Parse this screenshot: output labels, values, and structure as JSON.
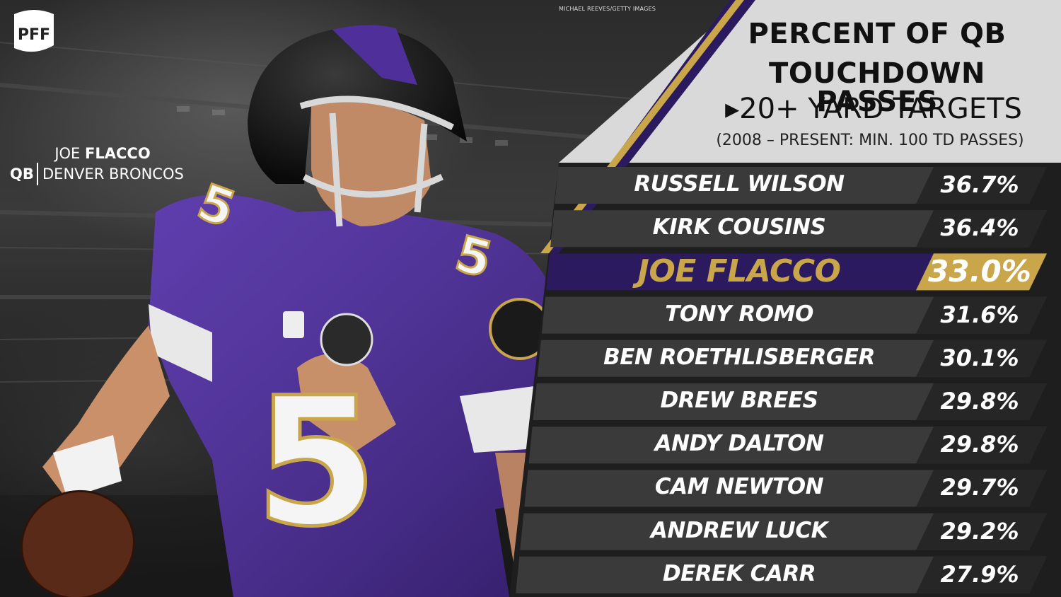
{
  "title": {
    "line1": "PERCENT OF QB",
    "line2": "TOUCHDOWN PASSES",
    "line3": "▸20+ YARD TARGETS",
    "note": "(2008 – PRESENT: MIN. 100 TD PASSES)"
  },
  "photo_credit": "MICHAEL REEVES/GETTY IMAGES",
  "brand": {
    "logo_text": "PFF"
  },
  "player_caption": {
    "first_name": "JOE",
    "last_name": "FLACCO",
    "position": "QB",
    "team": "DENVER BRONCOS",
    "jersey_number": "5"
  },
  "colors": {
    "purple": "#2b1a5e",
    "gold": "#c9a64a",
    "row_dark": "#3a3a3a",
    "header_bg": "#d9d9d9"
  },
  "chart_data": {
    "type": "table",
    "highlight": "JOE FLACCO",
    "rows": [
      {
        "name": "RUSSELL WILSON",
        "value": 36.7,
        "label": "36.7%"
      },
      {
        "name": "KIRK COUSINS",
        "value": 36.4,
        "label": "36.4%"
      },
      {
        "name": "JOE FLACCO",
        "value": 33.0,
        "label": "33.0%"
      },
      {
        "name": "TONY ROMO",
        "value": 31.6,
        "label": "31.6%"
      },
      {
        "name": "BEN ROETHLISBERGER",
        "value": 30.1,
        "label": "30.1%"
      },
      {
        "name": "DREW BREES",
        "value": 29.8,
        "label": "29.8%"
      },
      {
        "name": "ANDY DALTON",
        "value": 29.8,
        "label": "29.8%"
      },
      {
        "name": "CAM NEWTON",
        "value": 29.7,
        "label": "29.7%"
      },
      {
        "name": "ANDREW LUCK",
        "value": 29.2,
        "label": "29.2%"
      },
      {
        "name": "DEREK CARR",
        "value": 27.9,
        "label": "27.9%"
      }
    ]
  }
}
